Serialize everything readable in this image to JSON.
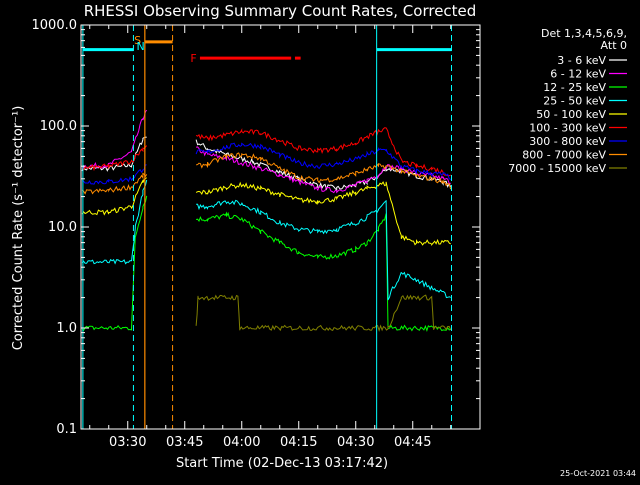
{
  "chart_data": {
    "type": "line",
    "title": "RHESSI Observing Summary Count Rates, Corrected",
    "xlabel": "Start Time (02-Dec-13 03:17:42)",
    "ylabel": "Corrected Count Rate (s⁻¹ detector⁻¹)",
    "y_scale": "log",
    "ylim": [
      0.1,
      1000
    ],
    "xlim_minutes": [
      197.7,
      302.7
    ],
    "y_ticks": [
      {
        "v": 0.1,
        "label": "0.1"
      },
      {
        "v": 1,
        "label": "1.0"
      },
      {
        "v": 10,
        "label": "10.0"
      },
      {
        "v": 100,
        "label": "100.0"
      },
      {
        "v": 1000,
        "label": "1000.0"
      }
    ],
    "x_ticks": [
      {
        "v": 210,
        "label": "03:30"
      },
      {
        "v": 225,
        "label": "03:45"
      },
      {
        "v": 240,
        "label": "04:00"
      },
      {
        "v": 255,
        "label": "04:15"
      },
      {
        "v": 270,
        "label": "04:30"
      },
      {
        "v": 285,
        "label": "04:45"
      }
    ],
    "legend_header": [
      "Det 1,3,4,5,6,9,",
      "Att 0"
    ],
    "series": [
      {
        "name": "3 - 6 keV",
        "color": "#ffffff",
        "points": [
          [
            198,
            38
          ],
          [
            205,
            38
          ],
          [
            211,
            41
          ],
          [
            214,
            75
          ],
          [
            215,
            80
          ],
          [
            217,
            0
          ],
          [
            228,
            70
          ],
          [
            231,
            60
          ],
          [
            236,
            52
          ],
          [
            243,
            44
          ],
          [
            250,
            35
          ],
          [
            255,
            30
          ],
          [
            260,
            26
          ],
          [
            265,
            24
          ],
          [
            270,
            26
          ],
          [
            273,
            28
          ],
          [
            276,
            32
          ],
          [
            278,
            38
          ],
          [
            282,
            36
          ],
          [
            286,
            32
          ],
          [
            290,
            30
          ],
          [
            293,
            28
          ],
          [
            295,
            25
          ]
        ]
      },
      {
        "name": "6 - 12 keV",
        "color": "#ff00ff",
        "points": [
          [
            198,
            40
          ],
          [
            205,
            41
          ],
          [
            211,
            55
          ],
          [
            214,
            120
          ],
          [
            215,
            140
          ],
          [
            217,
            0
          ],
          [
            228,
            60
          ],
          [
            231,
            52
          ],
          [
            236,
            48
          ],
          [
            243,
            40
          ],
          [
            250,
            33
          ],
          [
            255,
            28
          ],
          [
            260,
            24
          ],
          [
            265,
            23
          ],
          [
            270,
            26
          ],
          [
            273,
            29
          ],
          [
            276,
            33
          ],
          [
            278,
            40
          ],
          [
            282,
            38
          ],
          [
            286,
            34
          ],
          [
            290,
            32
          ],
          [
            293,
            30
          ],
          [
            295,
            28
          ]
        ]
      },
      {
        "name": "12 - 25 keV",
        "color": "#00ff00",
        "points": [
          [
            198,
            1.0
          ],
          [
            211,
            1.0
          ],
          [
            212,
            8
          ],
          [
            214,
            16
          ],
          [
            215,
            20
          ],
          [
            217,
            0
          ],
          [
            228,
            12
          ],
          [
            231,
            12
          ],
          [
            236,
            13
          ],
          [
            240,
            12
          ],
          [
            245,
            9
          ],
          [
            250,
            7
          ],
          [
            255,
            5.6
          ],
          [
            260,
            5.0
          ],
          [
            265,
            5.2
          ],
          [
            270,
            6.0
          ],
          [
            273,
            7.0
          ],
          [
            276,
            9.5
          ],
          [
            278,
            13
          ],
          [
            278.5,
            1.0
          ],
          [
            295,
            1.0
          ]
        ]
      },
      {
        "name": "25 - 50 keV",
        "color": "#00ffff",
        "points": [
          [
            198,
            4.5
          ],
          [
            211,
            4.5
          ],
          [
            212,
            10
          ],
          [
            214,
            22
          ],
          [
            215,
            28
          ],
          [
            217,
            0
          ],
          [
            228,
            16
          ],
          [
            231,
            16
          ],
          [
            236,
            18
          ],
          [
            240,
            17
          ],
          [
            245,
            14
          ],
          [
            250,
            11
          ],
          [
            255,
            9.5
          ],
          [
            260,
            9.0
          ],
          [
            265,
            9.5
          ],
          [
            270,
            11
          ],
          [
            273,
            12.5
          ],
          [
            276,
            15
          ],
          [
            278,
            18
          ],
          [
            278.5,
            2.0
          ],
          [
            282,
            3.5
          ],
          [
            286,
            3.0
          ],
          [
            290,
            2.5
          ],
          [
            295,
            2.0
          ]
        ]
      },
      {
        "name": "50 - 100 keV",
        "color": "#ffff00",
        "points": [
          [
            198,
            14
          ],
          [
            205,
            14
          ],
          [
            211,
            16
          ],
          [
            214,
            28
          ],
          [
            215,
            30
          ],
          [
            217,
            0
          ],
          [
            228,
            22
          ],
          [
            231,
            22
          ],
          [
            236,
            25
          ],
          [
            240,
            26
          ],
          [
            245,
            24
          ],
          [
            250,
            21
          ],
          [
            255,
            18.5
          ],
          [
            260,
            18
          ],
          [
            265,
            19
          ],
          [
            270,
            22
          ],
          [
            273,
            24
          ],
          [
            276,
            26
          ],
          [
            278,
            27
          ],
          [
            282,
            8
          ],
          [
            286,
            7
          ],
          [
            290,
            7
          ],
          [
            295,
            7
          ]
        ]
      },
      {
        "name": "100 - 300 keV",
        "color": "#ff0000",
        "points": [
          [
            198,
            38
          ],
          [
            205,
            40
          ],
          [
            211,
            45
          ],
          [
            214,
            60
          ],
          [
            215,
            65
          ],
          [
            217,
            0
          ],
          [
            228,
            80
          ],
          [
            231,
            75
          ],
          [
            236,
            82
          ],
          [
            240,
            88
          ],
          [
            245,
            86
          ],
          [
            250,
            72
          ],
          [
            255,
            60
          ],
          [
            260,
            57
          ],
          [
            265,
            60
          ],
          [
            270,
            68
          ],
          [
            273,
            78
          ],
          [
            276,
            88
          ],
          [
            278,
            92
          ],
          [
            282,
            45
          ],
          [
            286,
            40
          ],
          [
            290,
            38
          ],
          [
            293,
            35
          ],
          [
            295,
            32
          ]
        ]
      },
      {
        "name": "300 - 800 keV",
        "color": "#0000ff",
        "points": [
          [
            198,
            28
          ],
          [
            205,
            28
          ],
          [
            211,
            30
          ],
          [
            214,
            38
          ],
          [
            215,
            40
          ],
          [
            217,
            0
          ],
          [
            228,
            55
          ],
          [
            231,
            55
          ],
          [
            236,
            62
          ],
          [
            240,
            66
          ],
          [
            245,
            63
          ],
          [
            250,
            52
          ],
          [
            255,
            43
          ],
          [
            260,
            40
          ],
          [
            265,
            42
          ],
          [
            270,
            47
          ],
          [
            273,
            52
          ],
          [
            276,
            57
          ],
          [
            278,
            58
          ],
          [
            282,
            40
          ],
          [
            286,
            36
          ],
          [
            290,
            34
          ],
          [
            293,
            33
          ],
          [
            295,
            31
          ]
        ]
      },
      {
        "name": "800 - 7000 keV",
        "color": "#ff8c00",
        "points": [
          [
            198,
            22
          ],
          [
            205,
            23
          ],
          [
            211,
            25
          ],
          [
            214,
            32
          ],
          [
            215,
            33
          ],
          [
            217,
            0
          ],
          [
            228,
            40
          ],
          [
            231,
            42
          ],
          [
            236,
            50
          ],
          [
            240,
            52
          ],
          [
            245,
            48
          ],
          [
            250,
            38
          ],
          [
            255,
            31
          ],
          [
            260,
            29
          ],
          [
            265,
            30
          ],
          [
            270,
            34
          ],
          [
            273,
            37
          ],
          [
            276,
            40
          ],
          [
            278,
            40
          ],
          [
            282,
            36
          ],
          [
            286,
            32
          ],
          [
            290,
            30
          ],
          [
            293,
            28
          ],
          [
            295,
            25
          ]
        ]
      },
      {
        "name": "7000 - 15000 keV",
        "color": "#808000",
        "points": [
          [
            228,
            1.0
          ],
          [
            228.5,
            2.0
          ],
          [
            239,
            2.0
          ],
          [
            239.5,
            1.0
          ],
          [
            278.5,
            1.0
          ],
          [
            282,
            2.0
          ],
          [
            290,
            2.0
          ],
          [
            290.5,
            1.0
          ],
          [
            295,
            1.0
          ]
        ]
      }
    ],
    "annotations": {
      "s_label": "S",
      "n_label": "N",
      "f_label": "F"
    },
    "reference_lines": {
      "cyan_solid": [
        198.2,
        275.5
      ],
      "cyan_dashed": [
        211.5,
        295.2
      ],
      "orange_solid": [
        214.5
      ],
      "orange_dashed": [
        221.8
      ]
    },
    "flag_bars": [
      {
        "color": "#00ffff",
        "x0": 198.2,
        "x1": 211.5,
        "y": 570
      },
      {
        "color": "#00ffff",
        "x0": 275.5,
        "x1": 295.2,
        "y": 570
      },
      {
        "color": "#ff8c00",
        "x0": 214.5,
        "x1": 221.8,
        "y": 680
      },
      {
        "color": "#ff0000",
        "x0": 229,
        "x1": 253,
        "y": 470
      },
      {
        "color": "#ff0000",
        "x0": 254,
        "x1": 255.5,
        "y": 470
      }
    ]
  },
  "footer": {
    "timestamp": "25-Oct-2021 03:44"
  }
}
